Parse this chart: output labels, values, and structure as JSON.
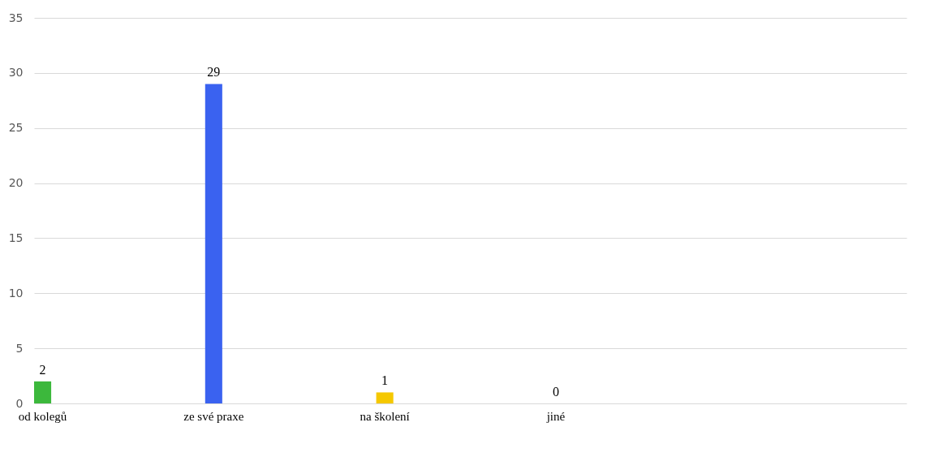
{
  "chart_data": {
    "type": "bar",
    "categories": [
      "od kolegů",
      "ze své praxe",
      "na školení",
      "jiné"
    ],
    "values": [
      2,
      29,
      1,
      0
    ],
    "colors": [
      "#3cb83c",
      "#3a62f0",
      "#f5c800",
      "#a0a0a0"
    ],
    "ylim": [
      0,
      35
    ],
    "yticks": [
      0,
      5,
      10,
      15,
      20,
      25,
      30,
      35
    ],
    "grid": "y",
    "data_labels": true
  }
}
